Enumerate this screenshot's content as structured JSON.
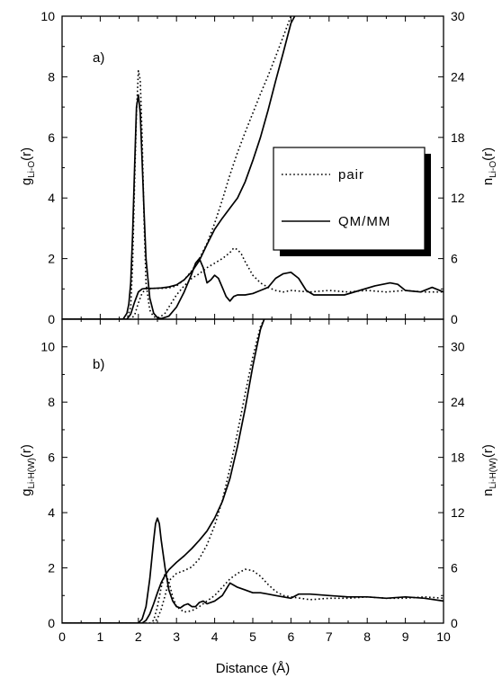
{
  "colors": {
    "line": "#000000",
    "background": "#ffffff",
    "legend_shadow": "#000000"
  },
  "chart_data": [
    {
      "type": "line",
      "panel": "a)",
      "xlim": [
        0,
        10
      ],
      "ylim_left": [
        0,
        10
      ],
      "ylim_right": [
        0,
        30
      ],
      "ylabel_left": {
        "main": "g",
        "sub": "Li-O",
        "tail": "(r)"
      },
      "ylabel_right": {
        "main": "n",
        "sub": "Li-O",
        "tail": "(r)"
      },
      "left_ticks": [
        0,
        2,
        4,
        6,
        8,
        10
      ],
      "right_ticks": [
        0,
        6,
        12,
        18,
        24,
        30
      ],
      "legend": {
        "position": "center-right",
        "entries": [
          {
            "style": "dotted",
            "label": "pair"
          },
          {
            "style": "solid",
            "label": "QM/MM"
          }
        ]
      },
      "series": [
        {
          "name": "pair",
          "kind": "g",
          "axis": "left",
          "style": "dotted",
          "x": [
            0,
            1.7,
            1.8,
            1.85,
            1.9,
            1.95,
            2.0,
            2.05,
            2.1,
            2.15,
            2.2,
            2.3,
            2.4,
            2.5,
            2.6,
            2.7,
            2.8,
            3.0,
            3.2,
            3.4,
            3.6,
            3.8,
            4.0,
            4.2,
            4.4,
            4.5,
            4.6,
            4.7,
            4.8,
            5.0,
            5.2,
            5.4,
            5.6,
            5.8,
            6.0,
            6.5,
            7.0,
            7.5,
            8.0,
            8.5,
            9.0,
            9.5,
            10
          ],
          "y": [
            0,
            0,
            0.4,
            1.8,
            4.5,
            6.8,
            8.2,
            7.9,
            6.0,
            3.2,
            1.2,
            0.3,
            0.08,
            0.05,
            0.1,
            0.2,
            0.4,
            0.8,
            1.1,
            1.35,
            1.5,
            1.7,
            1.85,
            2.0,
            2.2,
            2.35,
            2.3,
            2.15,
            1.9,
            1.45,
            1.2,
            1.05,
            0.95,
            0.9,
            0.95,
            0.9,
            0.95,
            0.9,
            0.95,
            0.9,
            0.95,
            0.9,
            0.9
          ]
        },
        {
          "name": "pair",
          "kind": "n",
          "axis": "right",
          "style": "dotted",
          "x": [
            0,
            1.8,
            1.9,
            2.0,
            2.1,
            2.2,
            2.4,
            2.6,
            2.8,
            3.0,
            3.2,
            3.4,
            3.6,
            3.8,
            4.0,
            4.2,
            4.4,
            4.6,
            4.8,
            5.0,
            5.2,
            5.4,
            5.6,
            5.8,
            6.0
          ],
          "y": [
            0,
            0,
            0.4,
            1.6,
            2.6,
            3.0,
            3.05,
            3.05,
            3.1,
            3.3,
            3.9,
            4.8,
            6.0,
            7.5,
            9.5,
            11.8,
            14.3,
            16.5,
            18.5,
            20.4,
            22.3,
            24.1,
            26.0,
            28.0,
            30.0
          ]
        },
        {
          "name": "QM/MM",
          "kind": "g",
          "axis": "left",
          "style": "solid",
          "x": [
            0,
            1.6,
            1.7,
            1.75,
            1.8,
            1.85,
            1.9,
            1.95,
            2.0,
            2.05,
            2.1,
            2.15,
            2.2,
            2.3,
            2.4,
            2.5,
            2.6,
            2.8,
            3.0,
            3.2,
            3.4,
            3.5,
            3.6,
            3.7,
            3.8,
            3.9,
            4.0,
            4.1,
            4.2,
            4.3,
            4.4,
            4.5,
            4.6,
            4.8,
            5.0,
            5.2,
            5.4,
            5.6,
            5.8,
            6.0,
            6.2,
            6.4,
            6.6,
            7.0,
            7.4,
            7.8,
            8.2,
            8.6,
            8.8,
            9.0,
            9.4,
            9.7,
            10
          ],
          "y": [
            0,
            0,
            0.2,
            0.5,
            1.2,
            2.8,
            5.0,
            7.0,
            7.4,
            6.8,
            5.2,
            3.5,
            2.0,
            0.7,
            0.2,
            0.05,
            0.02,
            0.1,
            0.4,
            0.9,
            1.5,
            1.85,
            2.0,
            1.7,
            1.2,
            1.3,
            1.45,
            1.35,
            1.05,
            0.75,
            0.6,
            0.75,
            0.8,
            0.8,
            0.85,
            0.95,
            1.05,
            1.35,
            1.5,
            1.55,
            1.35,
            0.95,
            0.8,
            0.8,
            0.8,
            0.95,
            1.1,
            1.2,
            1.15,
            0.95,
            0.9,
            1.05,
            0.9
          ]
        },
        {
          "name": "QM/MM",
          "kind": "n",
          "axis": "right",
          "style": "solid",
          "x": [
            0,
            1.7,
            1.8,
            1.9,
            2.0,
            2.1,
            2.2,
            2.4,
            2.6,
            2.8,
            3.0,
            3.2,
            3.4,
            3.6,
            3.8,
            4.0,
            4.2,
            4.4,
            4.6,
            4.8,
            5.0,
            5.2,
            5.4,
            5.6,
            5.8,
            6.0,
            6.1
          ],
          "y": [
            0,
            0,
            0.5,
            1.7,
            2.7,
            3.0,
            3.05,
            3.05,
            3.1,
            3.2,
            3.4,
            3.9,
            4.7,
            5.8,
            7.4,
            8.9,
            10.0,
            11.0,
            12.0,
            13.6,
            15.7,
            18.0,
            20.7,
            23.6,
            26.4,
            29.3,
            30.0
          ]
        }
      ]
    },
    {
      "type": "line",
      "panel": "b)",
      "xlim": [
        0,
        10
      ],
      "ylim_left": [
        0,
        11
      ],
      "ylim_right": [
        0,
        33
      ],
      "xlabel": "Distance (Å)",
      "x_ticks": [
        0,
        1,
        2,
        3,
        4,
        5,
        6,
        7,
        8,
        9,
        10
      ],
      "ylabel_left": {
        "main": "g",
        "sub": "Li-H(W)",
        "tail": "(r)"
      },
      "ylabel_right": {
        "main": "n",
        "sub": "Li-H(W)",
        "tail": "(r)"
      },
      "left_ticks": [
        0,
        2,
        4,
        6,
        8,
        10
      ],
      "right_ticks": [
        0,
        6,
        12,
        18,
        24,
        30
      ],
      "series": [
        {
          "name": "pair",
          "kind": "g",
          "axis": "left",
          "style": "dotted",
          "x": [
            0,
            2.3,
            2.4,
            2.5,
            2.6,
            2.7,
            2.8,
            2.9,
            3.0,
            3.2,
            3.4,
            3.6,
            3.8,
            4.0,
            4.2,
            4.4,
            4.6,
            4.8,
            5.0,
            5.2,
            5.4,
            5.6,
            5.8,
            6.0,
            6.5,
            7.0,
            7.5,
            8.0,
            8.5,
            9.0,
            9.5,
            10
          ],
          "y": [
            0,
            0,
            0.1,
            0.6,
            1.3,
            1.8,
            1.5,
            0.95,
            0.6,
            0.4,
            0.45,
            0.6,
            0.8,
            1.0,
            1.3,
            1.6,
            1.8,
            1.95,
            1.9,
            1.7,
            1.4,
            1.15,
            1.0,
            0.95,
            0.85,
            0.9,
            0.9,
            0.95,
            0.9,
            0.9,
            0.95,
            0.9
          ]
        },
        {
          "name": "pair",
          "kind": "n",
          "axis": "right",
          "style": "dotted",
          "x": [
            0,
            2.4,
            2.5,
            2.6,
            2.7,
            2.8,
            3.0,
            3.2,
            3.4,
            3.6,
            3.8,
            4.0,
            4.2,
            4.4,
            4.6,
            4.8,
            5.0,
            5.2,
            5.3
          ],
          "y": [
            0,
            0,
            0.5,
            1.5,
            3.0,
            4.6,
            5.4,
            5.7,
            6.1,
            7.0,
            8.5,
            10.6,
            13.3,
            16.8,
            20.7,
            24.9,
            28.9,
            32.2,
            33.0
          ]
        },
        {
          "name": "QM/MM",
          "kind": "g",
          "axis": "left",
          "style": "solid",
          "x": [
            0,
            2.0,
            2.1,
            2.2,
            2.3,
            2.4,
            2.45,
            2.5,
            2.55,
            2.6,
            2.7,
            2.8,
            2.9,
            3.0,
            3.1,
            3.2,
            3.3,
            3.4,
            3.5,
            3.6,
            3.7,
            3.8,
            4.0,
            4.2,
            4.4,
            4.6,
            4.8,
            5.0,
            5.2,
            5.4,
            5.6,
            5.8,
            6.0,
            6.2,
            6.5,
            7.0,
            7.5,
            8.0,
            8.5,
            9.0,
            9.5,
            10
          ],
          "y": [
            0,
            0,
            0.15,
            0.6,
            1.6,
            3.0,
            3.6,
            3.8,
            3.6,
            3.0,
            2.0,
            1.2,
            0.8,
            0.6,
            0.55,
            0.65,
            0.7,
            0.6,
            0.6,
            0.75,
            0.8,
            0.7,
            0.8,
            1.0,
            1.45,
            1.3,
            1.2,
            1.1,
            1.1,
            1.05,
            1.0,
            0.95,
            0.9,
            1.05,
            1.05,
            1.0,
            0.95,
            0.95,
            0.9,
            0.95,
            0.9,
            0.8
          ]
        },
        {
          "name": "QM/MM",
          "kind": "n",
          "axis": "right",
          "style": "solid",
          "x": [
            0,
            2.1,
            2.2,
            2.3,
            2.4,
            2.5,
            2.6,
            2.7,
            2.8,
            3.0,
            3.2,
            3.4,
            3.6,
            3.8,
            4.0,
            4.2,
            4.4,
            4.6,
            4.8,
            5.0,
            5.2,
            5.3
          ],
          "y": [
            0,
            0,
            0.3,
            1.0,
            2.1,
            3.3,
            4.4,
            5.2,
            5.8,
            6.6,
            7.3,
            8.1,
            9.0,
            10.0,
            11.4,
            13.2,
            15.7,
            19.2,
            23.3,
            27.9,
            31.9,
            33.0
          ]
        }
      ]
    }
  ]
}
